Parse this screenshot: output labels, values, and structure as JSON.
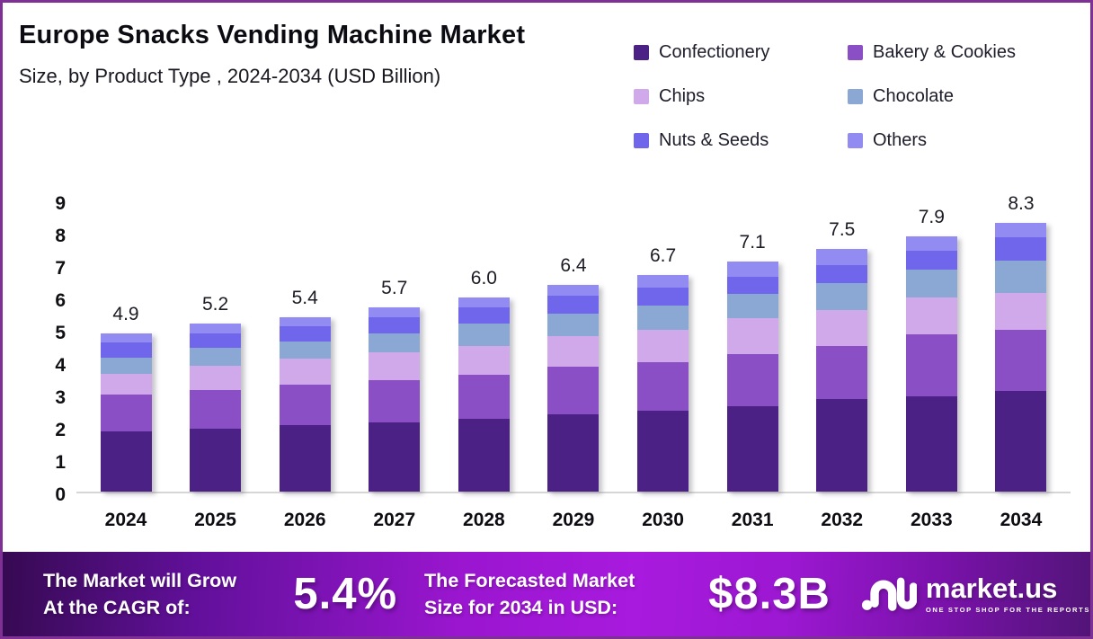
{
  "header": {
    "title": "Europe Snacks Vending Machine Market",
    "subtitle": "Size, by Product Type , 2024-2034 (USD Billion)"
  },
  "legend": {
    "items": [
      {
        "label": "Confectionery",
        "color": "#4c2185"
      },
      {
        "label": "Bakery & Cookies",
        "color": "#8a4ec5"
      },
      {
        "label": "Chips",
        "color": "#cfa9ea"
      },
      {
        "label": "Chocolate",
        "color": "#8ba8d4"
      },
      {
        "label": "Nuts & Seeds",
        "color": "#6f66ec"
      },
      {
        "label": "Others",
        "color": "#918bf2"
      }
    ]
  },
  "chart_data": {
    "type": "bar",
    "stacked": true,
    "title": "Europe Snacks Vending Machine Market Size, by Product Type, 2024-2034 (USD Billion)",
    "xlabel": "",
    "ylabel": "",
    "ylim": [
      0,
      9
    ],
    "yticks": [
      0,
      1,
      2,
      3,
      4,
      5,
      6,
      7,
      8,
      9
    ],
    "grid": false,
    "legend_position": "top-right",
    "categories": [
      "2024",
      "2025",
      "2026",
      "2027",
      "2028",
      "2029",
      "2030",
      "2031",
      "2032",
      "2033",
      "2034"
    ],
    "series": [
      {
        "name": "Confectionery",
        "color": "#4c2185",
        "values": [
          1.85,
          1.95,
          2.05,
          2.15,
          2.25,
          2.4,
          2.5,
          2.65,
          2.85,
          2.95,
          3.1
        ]
      },
      {
        "name": "Bakery & Cookies",
        "color": "#8a4ec5",
        "values": [
          1.15,
          1.2,
          1.25,
          1.3,
          1.35,
          1.45,
          1.5,
          1.6,
          1.65,
          1.9,
          1.9
        ]
      },
      {
        "name": "Chips",
        "color": "#cfa9ea",
        "values": [
          0.65,
          0.75,
          0.8,
          0.85,
          0.9,
          0.95,
          1.0,
          1.1,
          1.1,
          1.15,
          1.15
        ]
      },
      {
        "name": "Chocolate",
        "color": "#8ba8d4",
        "values": [
          0.5,
          0.55,
          0.55,
          0.6,
          0.7,
          0.7,
          0.75,
          0.75,
          0.85,
          0.85,
          1.0
        ]
      },
      {
        "name": "Nuts & Seeds",
        "color": "#6f66ec",
        "values": [
          0.45,
          0.45,
          0.45,
          0.5,
          0.5,
          0.55,
          0.55,
          0.55,
          0.55,
          0.6,
          0.7
        ]
      },
      {
        "name": "Others",
        "color": "#918bf2",
        "values": [
          0.3,
          0.3,
          0.3,
          0.3,
          0.3,
          0.35,
          0.4,
          0.45,
          0.5,
          0.45,
          0.45
        ]
      }
    ],
    "totals": [
      4.9,
      5.2,
      5.4,
      5.7,
      6.0,
      6.4,
      6.7,
      7.1,
      7.5,
      7.9,
      8.3
    ]
  },
  "footer": {
    "cagr_line1": "The Market will Grow",
    "cagr_line2": "At the CAGR of:",
    "cagr_value": "5.4%",
    "forecast_line1": "The Forecasted Market",
    "forecast_line2": "Size for 2034 in USD:",
    "forecast_value": "$8.3B",
    "brand_name": "market.us",
    "brand_tagline": "ONE STOP SHOP FOR THE REPORTS"
  },
  "colors": {
    "page_border": "#7e3094",
    "banner_left": "#360a52",
    "banner_center": "#a81ade",
    "banner_right": "#521478",
    "axis_line": "#d6d6d6",
    "background": "#ffffff"
  }
}
